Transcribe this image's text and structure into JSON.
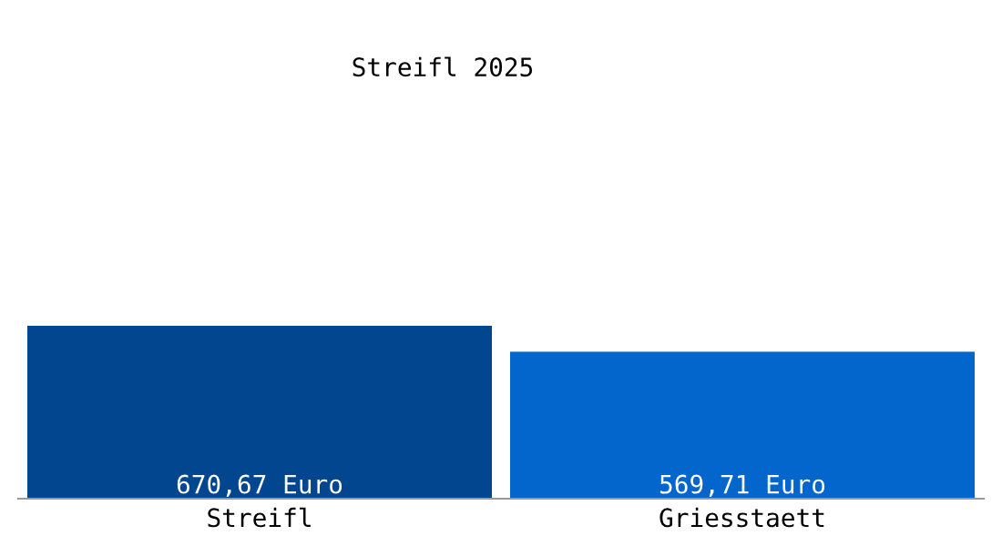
{
  "chart_data": {
    "type": "bar",
    "title": "Streifl 2025",
    "categories": [
      "Streifl",
      "Griesstaett"
    ],
    "series": [
      {
        "colors": [
          "#02468f",
          "#0366cc"
        ],
        "values": [
          670.67,
          569.71
        ],
        "value_labels": [
          "670,67 Euro",
          "569,71 Euro"
        ]
      }
    ],
    "grid": false
  }
}
